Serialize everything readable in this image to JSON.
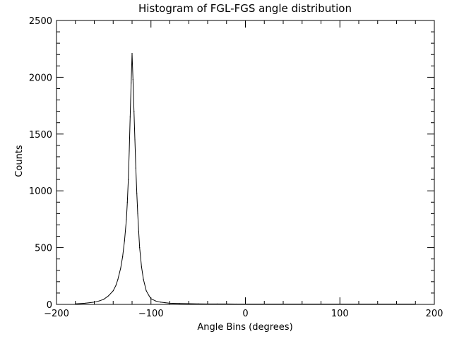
{
  "chart_data": {
    "type": "line",
    "title": "Histogram of FGL-FGS angle distribution",
    "xlabel": "Angle Bins (degrees)",
    "ylabel": "Counts",
    "xlim": [
      -200,
      200
    ],
    "ylim": [
      0,
      2500
    ],
    "xticks": [
      -200,
      -100,
      0,
      100,
      200
    ],
    "yticks": [
      0,
      500,
      1000,
      1500,
      2000,
      2500
    ],
    "x_minor_step": 20,
    "y_minor_step": 100,
    "grid": false,
    "legend": "none",
    "line_color": "#000000",
    "series": [
      {
        "x": [
          -180,
          -170,
          -160,
          -155,
          -150,
          -145,
          -140,
          -137,
          -135,
          -132,
          -130,
          -128,
          -126,
          -125,
          -124,
          -123,
          -122,
          -121,
          -120,
          -119,
          -118,
          -117,
          -116,
          -115,
          -114,
          -113,
          -112,
          -110,
          -108,
          -105,
          -102,
          -100,
          -95,
          -90,
          -85,
          -80,
          -70,
          -60,
          -50,
          -40,
          -30,
          -20,
          -10,
          0,
          20,
          40,
          60,
          80,
          100,
          120,
          140,
          160,
          180
        ],
        "y": [
          5,
          10,
          20,
          30,
          45,
          75,
          120,
          170,
          220,
          320,
          420,
          560,
          750,
          900,
          1100,
          1350,
          1650,
          1950,
          2210,
          1980,
          1700,
          1450,
          1200,
          980,
          800,
          640,
          500,
          330,
          220,
          120,
          75,
          50,
          30,
          20,
          15,
          10,
          8,
          6,
          5,
          4,
          4,
          4,
          3,
          3,
          3,
          3,
          3,
          3,
          3,
          3,
          3,
          3,
          3
        ]
      }
    ]
  }
}
